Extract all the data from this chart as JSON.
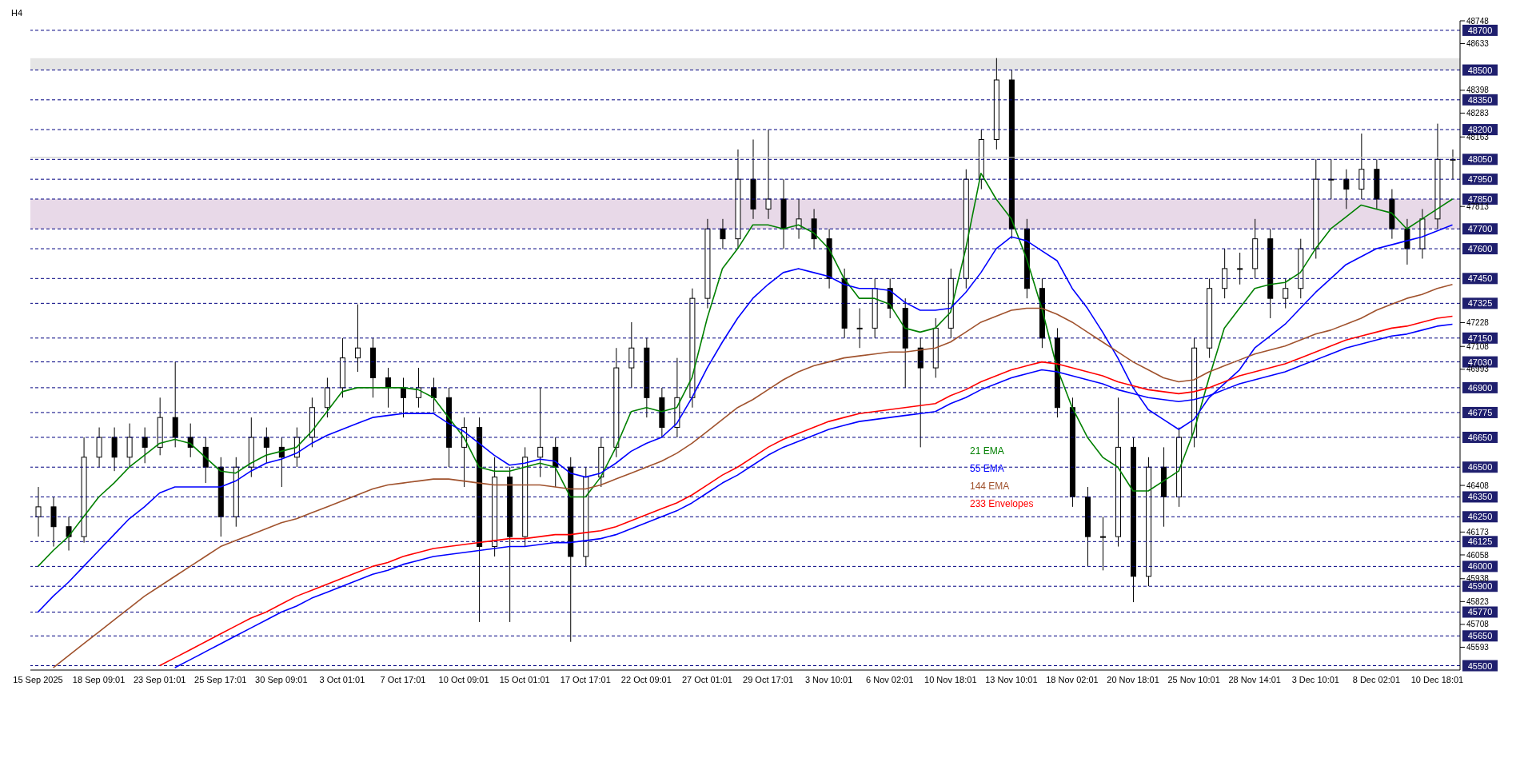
{
  "chart_data": {
    "type": "candlestick",
    "title": "H4",
    "color": "#000000",
    "categories": [
      "15 Sep 2025",
      null,
      null,
      null,
      "18 Sep 09:01",
      null,
      null,
      null,
      "23 Sep 01:01",
      null,
      null,
      null,
      "25 Sep 17:01",
      null,
      null,
      null,
      "30 Sep 09:01",
      null,
      null,
      null,
      "3 Oct 01:01",
      null,
      null,
      null,
      "7 Oct 17:01",
      null,
      null,
      null,
      "10 Oct 09:01",
      null,
      null,
      null,
      "15 Oct 01:01",
      null,
      null,
      null,
      "17 Oct 17:01",
      null,
      null,
      null,
      "22 Oct 09:01",
      null,
      null,
      null,
      "27 Oct 01:01",
      null,
      null,
      null,
      "29 Oct 17:01",
      null,
      null,
      null,
      "3 Nov 10:01",
      null,
      null,
      null,
      "6 Nov 02:01",
      null,
      null,
      null,
      "10 Nov 18:01",
      null,
      null,
      null,
      "13 Nov 10:01",
      null,
      null,
      null,
      "18 Nov 02:01",
      null,
      null,
      null,
      "20 Nov 18:01",
      null,
      null,
      null,
      "25 Nov 10:01",
      null,
      null,
      null,
      "28 Nov 14:01",
      null,
      null,
      null,
      "3 Dec 10:01",
      null,
      null,
      null,
      "8 Dec 02:01",
      null,
      null,
      null,
      "10 Dec 18:01",
      null
    ],
    "ohlc": [
      [
        46250,
        46400,
        46150,
        46300
      ],
      [
        46300,
        46350,
        46100,
        46200
      ],
      [
        46200,
        46250,
        46080,
        46150
      ],
      [
        46150,
        46650,
        46120,
        46550
      ],
      [
        46550,
        46700,
        46500,
        46650
      ],
      [
        46650,
        46700,
        46480,
        46550
      ],
      [
        46550,
        46720,
        46500,
        46650
      ],
      [
        46650,
        46700,
        46520,
        46600
      ],
      [
        46600,
        46850,
        46560,
        46750
      ],
      [
        46750,
        47030,
        46600,
        46650
      ],
      [
        46650,
        46720,
        46550,
        46600
      ],
      [
        46600,
        46650,
        46420,
        46500
      ],
      [
        46500,
        46550,
        46150,
        46250
      ],
      [
        46250,
        46550,
        46200,
        46500
      ],
      [
        46500,
        46750,
        46450,
        46650
      ],
      [
        46650,
        46700,
        46520,
        46600
      ],
      [
        46600,
        46650,
        46400,
        46550
      ],
      [
        46550,
        46700,
        46500,
        46650
      ],
      [
        46650,
        46850,
        46600,
        46800
      ],
      [
        46800,
        46950,
        46750,
        46900
      ],
      [
        46900,
        47150,
        46850,
        47050
      ],
      [
        47050,
        47320,
        46980,
        47100
      ],
      [
        47100,
        47150,
        46850,
        46950
      ],
      [
        46950,
        47000,
        46800,
        46900
      ],
      [
        46900,
        46950,
        46750,
        46850
      ],
      [
        46850,
        47000,
        46800,
        46900
      ],
      [
        46900,
        46950,
        46780,
        46850
      ],
      [
        46850,
        46900,
        46500,
        46600
      ],
      [
        46600,
        46750,
        46400,
        46700
      ],
      [
        46700,
        46750,
        45720,
        46100
      ],
      [
        46100,
        46550,
        46050,
        46450
      ],
      [
        46450,
        46500,
        45720,
        46150
      ],
      [
        46150,
        46600,
        46100,
        46550
      ],
      [
        46550,
        46900,
        46450,
        46600
      ],
      [
        46600,
        46650,
        46400,
        46500
      ],
      [
        46500,
        46550,
        45620,
        46050
      ],
      [
        46050,
        46500,
        46000,
        46450
      ],
      [
        46450,
        46650,
        46400,
        46600
      ],
      [
        46600,
        47100,
        46550,
        47000
      ],
      [
        47000,
        47230,
        46900,
        47100
      ],
      [
        47100,
        47150,
        46750,
        46850
      ],
      [
        46850,
        46900,
        46650,
        46700
      ],
      [
        46700,
        47050,
        46650,
        46850
      ],
      [
        46850,
        47400,
        46800,
        47350
      ],
      [
        47350,
        47750,
        47300,
        47700
      ],
      [
        47700,
        47750,
        47600,
        47650
      ],
      [
        47650,
        48100,
        47600,
        47950
      ],
      [
        47950,
        48150,
        47750,
        47800
      ],
      [
        47800,
        48200,
        47750,
        47850
      ],
      [
        47850,
        47950,
        47600,
        47700
      ],
      [
        47700,
        47850,
        47650,
        47750
      ],
      [
        47750,
        47800,
        47600,
        47650
      ],
      [
        47650,
        47700,
        47400,
        47450
      ],
      [
        47450,
        47500,
        47150,
        47200
      ],
      [
        47200,
        47300,
        47100,
        47200
      ],
      [
        47200,
        47450,
        47150,
        47400
      ],
      [
        47400,
        47450,
        47250,
        47300
      ],
      [
        47300,
        47350,
        46900,
        47100
      ],
      [
        47100,
        47150,
        46600,
        47000
      ],
      [
        47000,
        47250,
        46950,
        47200
      ],
      [
        47200,
        47500,
        47150,
        47450
      ],
      [
        47450,
        48000,
        47400,
        47950
      ],
      [
        47950,
        48200,
        47900,
        48150
      ],
      [
        48150,
        48560,
        48100,
        48450
      ],
      [
        48450,
        48500,
        47650,
        47700
      ],
      [
        47700,
        47750,
        47350,
        47400
      ],
      [
        47400,
        47450,
        47100,
        47150
      ],
      [
        47150,
        47200,
        46750,
        46800
      ],
      [
        46800,
        46850,
        46300,
        46350
      ],
      [
        46350,
        46400,
        46000,
        46150
      ],
      [
        46150,
        46250,
        45980,
        46150
      ],
      [
        46150,
        46850,
        46100,
        46600
      ],
      [
        46600,
        46650,
        45820,
        45950
      ],
      [
        45950,
        46550,
        45900,
        46500
      ],
      [
        46500,
        46600,
        46200,
        46350
      ],
      [
        46350,
        46700,
        46300,
        46650
      ],
      [
        46650,
        47150,
        46600,
        47100
      ],
      [
        47100,
        47450,
        47050,
        47400
      ],
      [
        47400,
        47600,
        47350,
        47500
      ],
      [
        47500,
        47580,
        47420,
        47500
      ],
      [
        47500,
        47750,
        47450,
        47650
      ],
      [
        47650,
        47700,
        47250,
        47350
      ],
      [
        47350,
        47450,
        47300,
        47400
      ],
      [
        47400,
        47650,
        47350,
        47600
      ],
      [
        47600,
        48050,
        47550,
        47950
      ],
      [
        47950,
        48050,
        47850,
        47950
      ],
      [
        47950,
        48000,
        47800,
        47900
      ],
      [
        47900,
        48180,
        47850,
        48000
      ],
      [
        48000,
        48050,
        47800,
        47850
      ],
      [
        47850,
        47900,
        47650,
        47700
      ],
      [
        47700,
        47750,
        47520,
        47600
      ],
      [
        47600,
        47800,
        47550,
        47750
      ],
      [
        47750,
        48230,
        47700,
        48050
      ],
      [
        48050,
        48100,
        47950,
        48050
      ]
    ],
    "series": [
      {
        "type": "line",
        "name": "21 EMA",
        "color": "#008000",
        "values": [
          46000,
          46080,
          46150,
          46250,
          46350,
          46420,
          46500,
          46560,
          46620,
          46640,
          46620,
          46550,
          46480,
          46470,
          46520,
          46560,
          46580,
          46600,
          46680,
          46780,
          46880,
          46900,
          46900,
          46900,
          46900,
          46890,
          46850,
          46750,
          46650,
          46500,
          46480,
          46480,
          46500,
          46520,
          46500,
          46350,
          46350,
          46450,
          46600,
          46780,
          46800,
          46780,
          46800,
          46950,
          47250,
          47500,
          47600,
          47720,
          47720,
          47700,
          47720,
          47680,
          47600,
          47450,
          47350,
          47350,
          47320,
          47200,
          47180,
          47200,
          47280,
          47600,
          47980,
          47850,
          47750,
          47550,
          47300,
          47000,
          46800,
          46650,
          46550,
          46500,
          46380,
          46380,
          46430,
          46480,
          46680,
          46950,
          47200,
          47300,
          47400,
          47420,
          47430,
          47480,
          47600,
          47700,
          47760,
          47820,
          47800,
          47780,
          47700,
          47750,
          47800,
          47850
        ]
      },
      {
        "type": "line",
        "name": "55 EMA",
        "color": "#0000ff",
        "values": [
          45770,
          45850,
          45920,
          46000,
          46080,
          46160,
          46240,
          46300,
          46370,
          46400,
          46400,
          46400,
          46400,
          46430,
          46480,
          46520,
          46540,
          46570,
          46620,
          46660,
          46690,
          46720,
          46750,
          46760,
          46770,
          46770,
          46770,
          46720,
          46680,
          46620,
          46560,
          46510,
          46520,
          46540,
          46530,
          46470,
          46450,
          46470,
          46520,
          46580,
          46620,
          46650,
          46720,
          46850,
          47000,
          47130,
          47250,
          47350,
          47420,
          47480,
          47500,
          47480,
          47460,
          47420,
          47400,
          47400,
          47390,
          47330,
          47290,
          47290,
          47300,
          47380,
          47480,
          47600,
          47660,
          47640,
          47590,
          47540,
          47400,
          47300,
          47180,
          47050,
          46900,
          46790,
          46740,
          46690,
          46740,
          46850,
          46920,
          46990,
          47100,
          47160,
          47220,
          47300,
          47380,
          47450,
          47520,
          47560,
          47600,
          47620,
          47640,
          47660,
          47690,
          47720
        ]
      },
      {
        "type": "line",
        "name": "144 EMA",
        "color": "#a0522d",
        "values": [
          null,
          45490,
          45550,
          45610,
          45670,
          45730,
          45790,
          45850,
          45900,
          45950,
          46000,
          46050,
          46100,
          46130,
          46160,
          46190,
          46220,
          46240,
          46270,
          46300,
          46330,
          46360,
          46390,
          46410,
          46420,
          46430,
          46440,
          46440,
          46430,
          46420,
          46410,
          46410,
          46410,
          46410,
          46400,
          46390,
          46390,
          46410,
          46440,
          46470,
          46500,
          46530,
          46570,
          46620,
          46680,
          46740,
          46800,
          46840,
          46890,
          46940,
          46980,
          47010,
          47030,
          47050,
          47060,
          47070,
          47080,
          47080,
          47090,
          47100,
          47130,
          47180,
          47230,
          47260,
          47290,
          47300,
          47300,
          47270,
          47230,
          47180,
          47130,
          47080,
          47030,
          46990,
          46950,
          46930,
          46940,
          46980,
          47010,
          47040,
          47070,
          47090,
          47110,
          47140,
          47170,
          47190,
          47220,
          47250,
          47290,
          47320,
          47350,
          47370,
          47400,
          47420
        ]
      },
      {
        "type": "line",
        "name": "233 Envelopes",
        "color": "#ff0000",
        "values": [
          null,
          null,
          null,
          null,
          null,
          null,
          null,
          null,
          45500,
          45540,
          45580,
          45620,
          45660,
          45700,
          45740,
          45770,
          45810,
          45850,
          45880,
          45910,
          45940,
          45970,
          46000,
          46020,
          46050,
          46070,
          46090,
          46100,
          46110,
          46120,
          46130,
          46140,
          46140,
          46150,
          46160,
          46160,
          46170,
          46180,
          46200,
          46230,
          46260,
          46290,
          46320,
          46360,
          46410,
          46460,
          46500,
          46550,
          46600,
          46640,
          46670,
          46700,
          46730,
          46750,
          46770,
          46780,
          46790,
          46800,
          46810,
          46820,
          46860,
          46890,
          46930,
          46960,
          46990,
          47010,
          47030,
          47020,
          47000,
          46980,
          46960,
          46930,
          46910,
          46890,
          46880,
          46870,
          46880,
          46900,
          46930,
          46960,
          46980,
          47000,
          47020,
          47050,
          47080,
          47110,
          47140,
          47160,
          47180,
          47200,
          47210,
          47230,
          47250,
          47260
        ]
      },
      {
        "type": "line",
        "color": "#0000ff",
        "values": [
          null,
          null,
          null,
          null,
          null,
          null,
          null,
          null,
          null,
          45490,
          45530,
          45570,
          45610,
          45650,
          45690,
          45730,
          45770,
          45800,
          45840,
          45870,
          45900,
          45930,
          45960,
          45980,
          46010,
          46030,
          46050,
          46060,
          46070,
          46080,
          46090,
          46100,
          46100,
          46110,
          46120,
          46120,
          46130,
          46140,
          46160,
          46190,
          46220,
          46250,
          46280,
          46320,
          46370,
          46420,
          46460,
          46510,
          46560,
          46600,
          46630,
          46660,
          46690,
          46710,
          46730,
          46740,
          46750,
          46760,
          46770,
          46780,
          46820,
          46850,
          46890,
          46920,
          46950,
          46970,
          46990,
          46980,
          46960,
          46940,
          46920,
          46890,
          46870,
          46850,
          46840,
          46830,
          46840,
          46860,
          46890,
          46920,
          46940,
          46960,
          46980,
          47010,
          47040,
          47070,
          47100,
          47120,
          47140,
          47160,
          47170,
          47190,
          47210,
          47220
        ]
      }
    ],
    "ylim": [
      45478,
      48748
    ],
    "yticks": [
      45593,
      45708,
      45823,
      45938,
      46058,
      46173,
      46408,
      46993,
      47108,
      47228,
      47813,
      48163,
      48283,
      48398,
      48633,
      48748
    ],
    "ref_lines": [
      {
        "axis": "y",
        "value": 48700,
        "label": "48700",
        "color": "#000080",
        "line_style": "dashed"
      },
      {
        "axis": "y",
        "value": 48500,
        "label": "48500",
        "color": "#000080",
        "line_style": "dashed"
      },
      {
        "axis": "y",
        "value": 48350,
        "label": "48350",
        "color": "#000080",
        "line_style": "dashed"
      },
      {
        "axis": "y",
        "value": 48200,
        "label": "48200",
        "color": "#000080",
        "line_style": "dashed"
      },
      {
        "axis": "y",
        "value": 48050,
        "label": "48050",
        "color": "#000080",
        "line_style": "dashed"
      },
      {
        "axis": "y",
        "value": 47950,
        "label": "47950",
        "color": "#000080",
        "line_style": "dashed"
      },
      {
        "axis": "y",
        "value": 47850,
        "label": "47850",
        "color": "#000080",
        "line_style": "dashed"
      },
      {
        "axis": "y",
        "value": 47700,
        "label": "47700",
        "color": "#000080",
        "line_style": "dashed"
      },
      {
        "axis": "y",
        "value": 47600,
        "label": "47600",
        "color": "#000080",
        "line_style": "dashed"
      },
      {
        "axis": "y",
        "value": 47450,
        "label": "47450",
        "color": "#000080",
        "line_style": "dashed"
      },
      {
        "axis": "y",
        "value": 47325,
        "label": "47325",
        "color": "#000080",
        "line_style": "dashed"
      },
      {
        "axis": "y",
        "value": 47150,
        "label": "47150",
        "color": "#000080",
        "line_style": "dashed"
      },
      {
        "axis": "y",
        "value": 47030,
        "label": "47030",
        "color": "#000080",
        "line_style": "dashed"
      },
      {
        "axis": "y",
        "value": 46900,
        "label": "46900",
        "color": "#000080",
        "line_style": "dashed"
      },
      {
        "axis": "y",
        "value": 46775,
        "label": "46775",
        "color": "#000080",
        "line_style": "dashed"
      },
      {
        "axis": "y",
        "value": 46650,
        "label": "46650",
        "color": "#000080",
        "line_style": "dashed"
      },
      {
        "axis": "y",
        "value": 46500,
        "label": "46500",
        "color": "#000080",
        "line_style": "dashed"
      },
      {
        "axis": "y",
        "value": 46350,
        "label": "46350",
        "color": "#000080",
        "line_style": "dashed"
      },
      {
        "axis": "y",
        "value": 46250,
        "label": "46250",
        "color": "#000080",
        "line_style": "dashed"
      },
      {
        "axis": "y",
        "value": 46125,
        "label": "46125",
        "color": "#000080",
        "line_style": "dashed"
      },
      {
        "axis": "y",
        "value": 46000,
        "label": "46000",
        "color": "#000080",
        "line_style": "dashed"
      },
      {
        "axis": "y",
        "value": 45900,
        "label": "45900",
        "color": "#000080",
        "line_style": "dashed"
      },
      {
        "axis": "y",
        "value": 45770,
        "label": "45770",
        "color": "#000080",
        "line_style": "dashed"
      },
      {
        "axis": "y",
        "value": 45650,
        "label": "45650",
        "color": "#000080",
        "line_style": "dashed"
      },
      {
        "axis": "y",
        "value": 45500,
        "label": "45500",
        "color": "#000080",
        "line_style": "dashed"
      },
      {
        "axis": "y",
        "value": 48060,
        "color": "#c0c0c0",
        "line_style": "solid"
      }
    ],
    "bands": [
      {
        "axis": "y",
        "from": 48500,
        "to": 48560,
        "color": "#d3d3d3"
      },
      {
        "axis": "y",
        "from": 47700,
        "to": 47850,
        "color": "#d8bfd8"
      }
    ],
    "legend": "center"
  }
}
